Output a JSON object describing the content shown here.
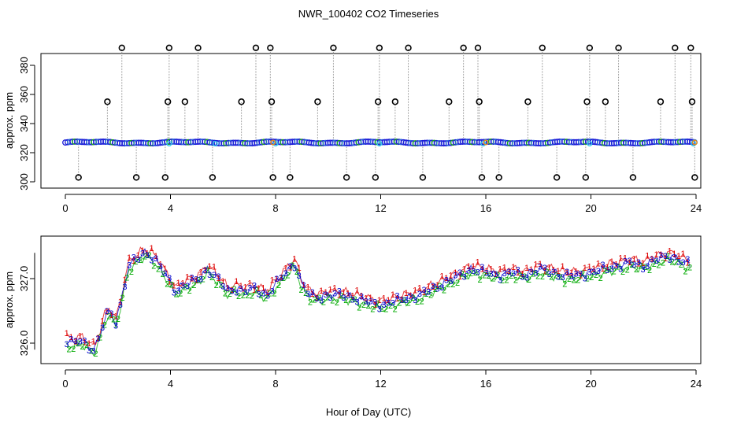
{
  "title": "NWR_100402  CO2 Timeseries",
  "xlabel": "Hour of Day (UTC)",
  "chart_data": [
    {
      "type": "scatter",
      "panel": "top",
      "ylabel": "approx. ppm",
      "xlim": [
        0,
        24
      ],
      "ylim": [
        300,
        380
      ],
      "xticks": [
        0,
        4,
        8,
        12,
        16,
        20,
        24
      ],
      "yticks": [
        300,
        320,
        340,
        360,
        380
      ],
      "baseline": 327,
      "spikes": [
        {
          "x": 0.5,
          "y": 303
        },
        {
          "x": 1.6,
          "y": 355
        },
        {
          "x": 2.15,
          "y": 392
        },
        {
          "x": 2.7,
          "y": 303
        },
        {
          "x": 3.8,
          "y": 303
        },
        {
          "x": 3.9,
          "y": 355
        },
        {
          "x": 3.95,
          "y": 392
        },
        {
          "x": 4.55,
          "y": 355
        },
        {
          "x": 5.05,
          "y": 392
        },
        {
          "x": 5.6,
          "y": 303
        },
        {
          "x": 6.7,
          "y": 355
        },
        {
          "x": 7.25,
          "y": 392
        },
        {
          "x": 7.8,
          "y": 392
        },
        {
          "x": 7.85,
          "y": 355
        },
        {
          "x": 7.9,
          "y": 303
        },
        {
          "x": 8.55,
          "y": 303
        },
        {
          "x": 9.6,
          "y": 355
        },
        {
          "x": 10.2,
          "y": 392
        },
        {
          "x": 10.7,
          "y": 303
        },
        {
          "x": 11.8,
          "y": 303
        },
        {
          "x": 11.9,
          "y": 355
        },
        {
          "x": 11.95,
          "y": 392
        },
        {
          "x": 12.55,
          "y": 355
        },
        {
          "x": 13.05,
          "y": 392
        },
        {
          "x": 13.6,
          "y": 303
        },
        {
          "x": 14.6,
          "y": 355
        },
        {
          "x": 15.15,
          "y": 392
        },
        {
          "x": 15.7,
          "y": 392
        },
        {
          "x": 15.75,
          "y": 355
        },
        {
          "x": 15.85,
          "y": 303
        },
        {
          "x": 16.5,
          "y": 303
        },
        {
          "x": 17.6,
          "y": 355
        },
        {
          "x": 18.15,
          "y": 392
        },
        {
          "x": 18.7,
          "y": 303
        },
        {
          "x": 19.8,
          "y": 303
        },
        {
          "x": 19.85,
          "y": 355
        },
        {
          "x": 19.95,
          "y": 392
        },
        {
          "x": 20.55,
          "y": 355
        },
        {
          "x": 21.05,
          "y": 392
        },
        {
          "x": 21.6,
          "y": 303
        },
        {
          "x": 22.65,
          "y": 355
        },
        {
          "x": 23.2,
          "y": 392
        },
        {
          "x": 23.8,
          "y": 392
        },
        {
          "x": 23.85,
          "y": 355
        },
        {
          "x": 23.95,
          "y": 303
        }
      ]
    },
    {
      "type": "scatter",
      "panel": "bottom",
      "ylabel": "approx. ppm",
      "xlim": [
        0,
        24
      ],
      "ylim": [
        325.75,
        327.6
      ],
      "xticks": [
        0,
        4,
        8,
        12,
        16,
        20,
        24
      ],
      "yticks": [
        326.0,
        327.0
      ],
      "ytick_labels": [
        "326.0",
        "327.0"
      ],
      "series": [
        {
          "name": "1",
          "color": "#dd0000",
          "offset": 0.06
        },
        {
          "name": "2",
          "color": "#00aa00",
          "offset": -0.06
        },
        {
          "name": "3",
          "color": "#0000cc",
          "offset": 0
        }
      ],
      "mean_curve": {
        "x": [
          0,
          0.3,
          0.6,
          0.9,
          1.1,
          1.3,
          1.5,
          1.7,
          1.9,
          2.1,
          2.4,
          2.7,
          3.0,
          3.3,
          3.6,
          3.9,
          4.2,
          4.5,
          4.8,
          5.1,
          5.4,
          5.7,
          5.9,
          6.2,
          6.5,
          6.8,
          7.1,
          7.4,
          7.7,
          7.95,
          8.2,
          8.5,
          8.75,
          9.0,
          9.3,
          9.6,
          10,
          10.5,
          11,
          11.5,
          11.8,
          12.1,
          12.5,
          13,
          13.5,
          14,
          14.5,
          15,
          15.5,
          16,
          16.5,
          17,
          17.5,
          18,
          18.5,
          19,
          19.5,
          20,
          20.5,
          21,
          21.5,
          22,
          22.5,
          23,
          23.3,
          23.6,
          23.8
        ],
        "y": [
          326.05,
          326.0,
          326.05,
          325.95,
          325.9,
          326.1,
          326.4,
          326.5,
          326.3,
          326.6,
          327.2,
          327.3,
          327.4,
          327.35,
          327.2,
          327.0,
          326.8,
          326.9,
          326.95,
          327.0,
          327.15,
          327.05,
          326.95,
          326.8,
          326.85,
          326.8,
          326.85,
          326.8,
          326.75,
          326.9,
          327.0,
          327.15,
          327.25,
          326.9,
          326.75,
          326.7,
          326.75,
          326.75,
          326.7,
          326.65,
          326.6,
          326.6,
          326.65,
          326.7,
          326.75,
          326.85,
          326.95,
          327.05,
          327.15,
          327.1,
          327.05,
          327.1,
          327.05,
          327.15,
          327.1,
          327.05,
          327.05,
          327.1,
          327.15,
          327.2,
          327.25,
          327.2,
          327.3,
          327.35,
          327.3,
          327.25,
          327.2
        ]
      }
    }
  ]
}
